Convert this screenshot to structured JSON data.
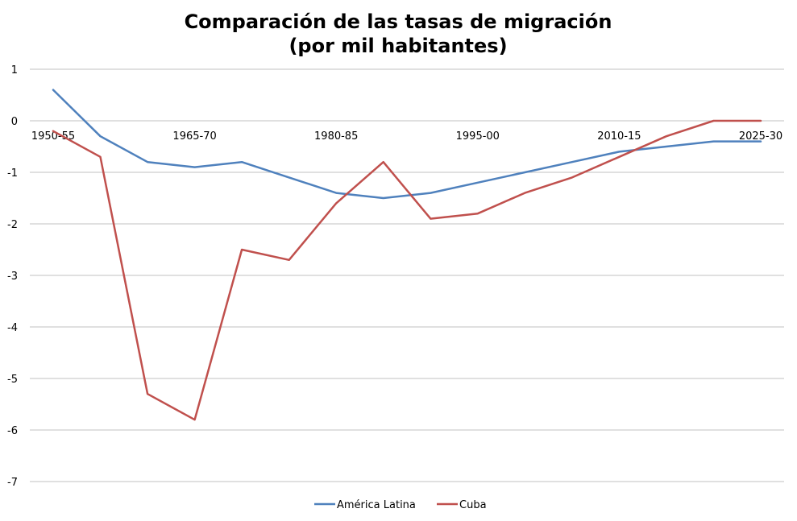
{
  "chart_data": {
    "type": "line",
    "title_line1": "Comparación de las tasas de migración",
    "title_line2": "(por mil habitantes)",
    "xlabel": "",
    "ylabel": "",
    "ylim": [
      -7,
      1
    ],
    "yticks": [
      "1",
      "0",
      "-1",
      "-2",
      "-3",
      "-4",
      "-5",
      "-6",
      "-7"
    ],
    "xtick_labels": [
      "1950-55",
      "1965-70",
      "1980-85",
      "1995-00",
      "2010-15",
      "2025-30"
    ],
    "categories": [
      "1950-55",
      "1955-60",
      "1960-65",
      "1965-70",
      "1970-75",
      "1975-80",
      "1980-85",
      "1985-90",
      "1990-95",
      "1995-00",
      "2000-05",
      "2005-10",
      "2010-15",
      "2015-20",
      "2020-25",
      "2025-30"
    ],
    "grid": true,
    "legend_position": "bottom",
    "series": [
      {
        "name": "América Latina",
        "color": "#4f81bd",
        "values": [
          0.6,
          -0.3,
          -0.8,
          -0.9,
          -0.8,
          -1.1,
          -1.4,
          -1.5,
          -1.4,
          -1.2,
          -1.0,
          -0.8,
          -0.6,
          -0.5,
          -0.4,
          -0.4
        ]
      },
      {
        "name": "Cuba",
        "color": "#c0504d",
        "values": [
          -0.2,
          -0.7,
          -5.3,
          -5.8,
          -2.5,
          -2.7,
          -1.6,
          -0.8,
          -1.9,
          -1.8,
          -1.4,
          -1.1,
          -0.7,
          -0.3,
          0.0,
          0.0
        ]
      }
    ]
  }
}
